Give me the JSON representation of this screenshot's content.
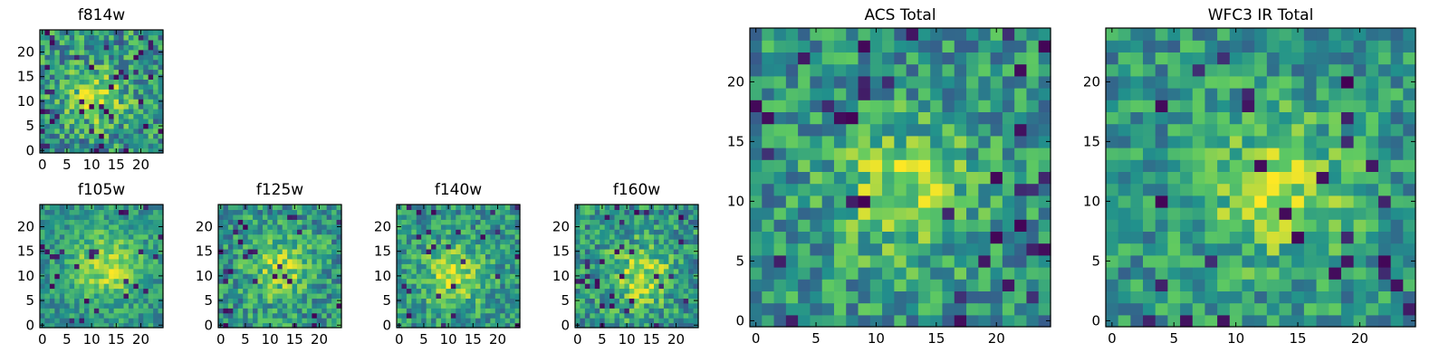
{
  "colormap": [
    "#440154",
    "#3b528b",
    "#21918c",
    "#5ec962",
    "#fde725"
  ],
  "chart_data": [
    {
      "id": "f814w",
      "type": "heatmap",
      "title": "f814w",
      "grid_size": 25,
      "seed": 11,
      "center": [
        11,
        11
      ],
      "sigma": 4.0,
      "amp": 0.3,
      "noise": 0.28,
      "dark_frac": 0.06,
      "x_ticks": [
        0,
        5,
        10,
        15,
        20
      ],
      "y_ticks": [
        0,
        5,
        10,
        15,
        20
      ],
      "xlim": [
        -0.5,
        24.5
      ],
      "ylim": [
        -0.5,
        24.5
      ],
      "grid": false
    },
    {
      "id": "f105w",
      "type": "heatmap",
      "title": "f105w",
      "grid_size": 25,
      "seed": 23,
      "center": [
        13,
        12
      ],
      "sigma": 5.0,
      "amp": 0.35,
      "noise": 0.18,
      "dark_frac": 0.03,
      "x_ticks": [
        0,
        5,
        10,
        15,
        20
      ],
      "y_ticks": [
        0,
        5,
        10,
        15,
        20
      ],
      "xlim": [
        -0.5,
        24.5
      ],
      "ylim": [
        -0.5,
        24.5
      ],
      "grid": false
    },
    {
      "id": "f125w",
      "type": "heatmap",
      "title": "f125w",
      "grid_size": 25,
      "seed": 37,
      "center": [
        12,
        12
      ],
      "sigma": 4.5,
      "amp": 0.3,
      "noise": 0.24,
      "dark_frac": 0.05,
      "x_ticks": [
        0,
        5,
        10,
        15,
        20
      ],
      "y_ticks": [
        0,
        5,
        10,
        15,
        20
      ],
      "xlim": [
        -0.5,
        24.5
      ],
      "ylim": [
        -0.5,
        24.5
      ],
      "grid": false
    },
    {
      "id": "f140w",
      "type": "heatmap",
      "title": "f140w",
      "grid_size": 25,
      "seed": 41,
      "center": [
        11,
        10
      ],
      "sigma": 4.5,
      "amp": 0.35,
      "noise": 0.22,
      "dark_frac": 0.05,
      "x_ticks": [
        0,
        5,
        10,
        15,
        20
      ],
      "y_ticks": [
        0,
        5,
        10,
        15,
        20
      ],
      "xlim": [
        -0.5,
        24.5
      ],
      "ylim": [
        -0.5,
        24.5
      ],
      "grid": false
    },
    {
      "id": "f160w",
      "type": "heatmap",
      "title": "f160w",
      "grid_size": 25,
      "seed": 53,
      "center": [
        13,
        10
      ],
      "sigma": 4.5,
      "amp": 0.35,
      "noise": 0.25,
      "dark_frac": 0.07,
      "x_ticks": [
        0,
        5,
        10,
        15,
        20
      ],
      "y_ticks": [
        0,
        5,
        10,
        15,
        20
      ],
      "xlim": [
        -0.5,
        24.5
      ],
      "ylim": [
        -0.5,
        24.5
      ],
      "grid": false
    },
    {
      "id": "acs",
      "type": "heatmap",
      "title": "ACS Total",
      "grid_size": 25,
      "seed": 67,
      "center": [
        12,
        11
      ],
      "sigma": 4.0,
      "amp": 0.32,
      "noise": 0.24,
      "dark_frac": 0.05,
      "x_ticks": [
        0,
        5,
        10,
        15,
        20
      ],
      "y_ticks": [
        0,
        5,
        10,
        15,
        20
      ],
      "xlim": [
        -0.5,
        24.5
      ],
      "ylim": [
        -0.5,
        24.5
      ],
      "grid": false
    },
    {
      "id": "wfc3",
      "type": "heatmap",
      "title": "WFC3 IR Total",
      "grid_size": 25,
      "seed": 79,
      "center": [
        13,
        11
      ],
      "sigma": 4.5,
      "amp": 0.3,
      "noise": 0.22,
      "dark_frac": 0.05,
      "x_ticks": [
        0,
        5,
        10,
        15,
        20
      ],
      "y_ticks": [
        0,
        5,
        10,
        15,
        20
      ],
      "xlim": [
        -0.5,
        24.5
      ],
      "ylim": [
        -0.5,
        24.5
      ],
      "grid": false
    }
  ]
}
